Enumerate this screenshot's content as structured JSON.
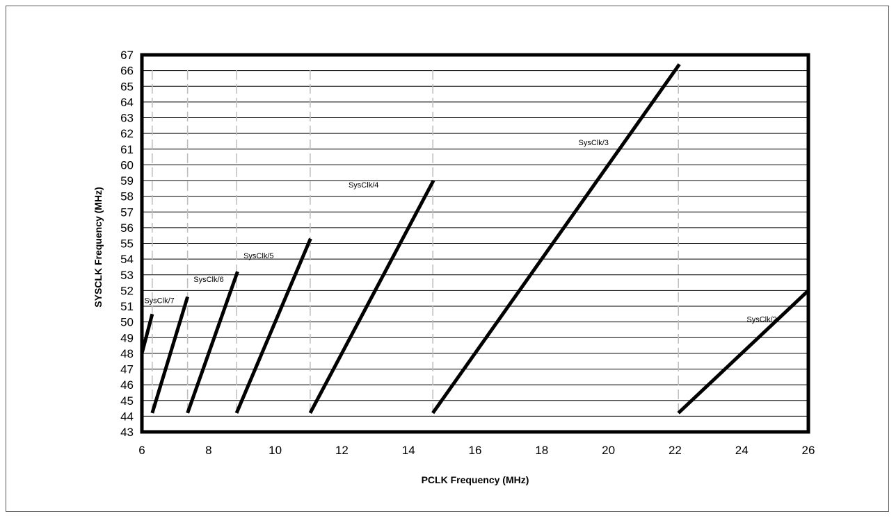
{
  "chart_data": {
    "type": "line",
    "title": "",
    "xlabel": "PCLK Frequency (MHz)",
    "ylabel": "SYSCLK Frequency (MHz)",
    "xlim": [
      6,
      26
    ],
    "ylim": [
      43,
      67
    ],
    "x_ticks": [
      6,
      8,
      10,
      12,
      14,
      16,
      18,
      20,
      22,
      24,
      26
    ],
    "y_ticks": [
      43,
      44,
      45,
      46,
      47,
      48,
      49,
      50,
      51,
      52,
      53,
      54,
      55,
      56,
      57,
      58,
      59,
      60,
      61,
      62,
      63,
      64,
      65,
      66,
      67
    ],
    "grid": {
      "horizontal": true,
      "vertical": false
    },
    "legend": "none",
    "line_color": "#000000",
    "series": [
      {
        "name": "SysClk/2",
        "x": [
          22.1,
          26.0
        ],
        "y": [
          44.2,
          52.0
        ]
      },
      {
        "name": "SysClk/3",
        "x": [
          14.73,
          22.13
        ],
        "y": [
          44.2,
          66.4
        ]
      },
      {
        "name": "SysClk/4",
        "x": [
          11.05,
          14.75
        ],
        "y": [
          44.2,
          59.0
        ]
      },
      {
        "name": "SysClk/5",
        "x": [
          8.84,
          11.06
        ],
        "y": [
          44.2,
          55.3
        ]
      },
      {
        "name": "SysClk/6",
        "x": [
          7.37,
          8.87
        ],
        "y": [
          44.2,
          53.2
        ]
      },
      {
        "name": "SysClk/7",
        "x": [
          6.31,
          7.37
        ],
        "y": [
          44.2,
          51.6
        ]
      },
      {
        "name": "",
        "x": [
          6.0,
          6.31
        ],
        "y": [
          48.0,
          50.5
        ]
      }
    ],
    "drop_lines_x": [
      6.31,
      7.37,
      8.84,
      11.05,
      14.73,
      22.1
    ]
  }
}
